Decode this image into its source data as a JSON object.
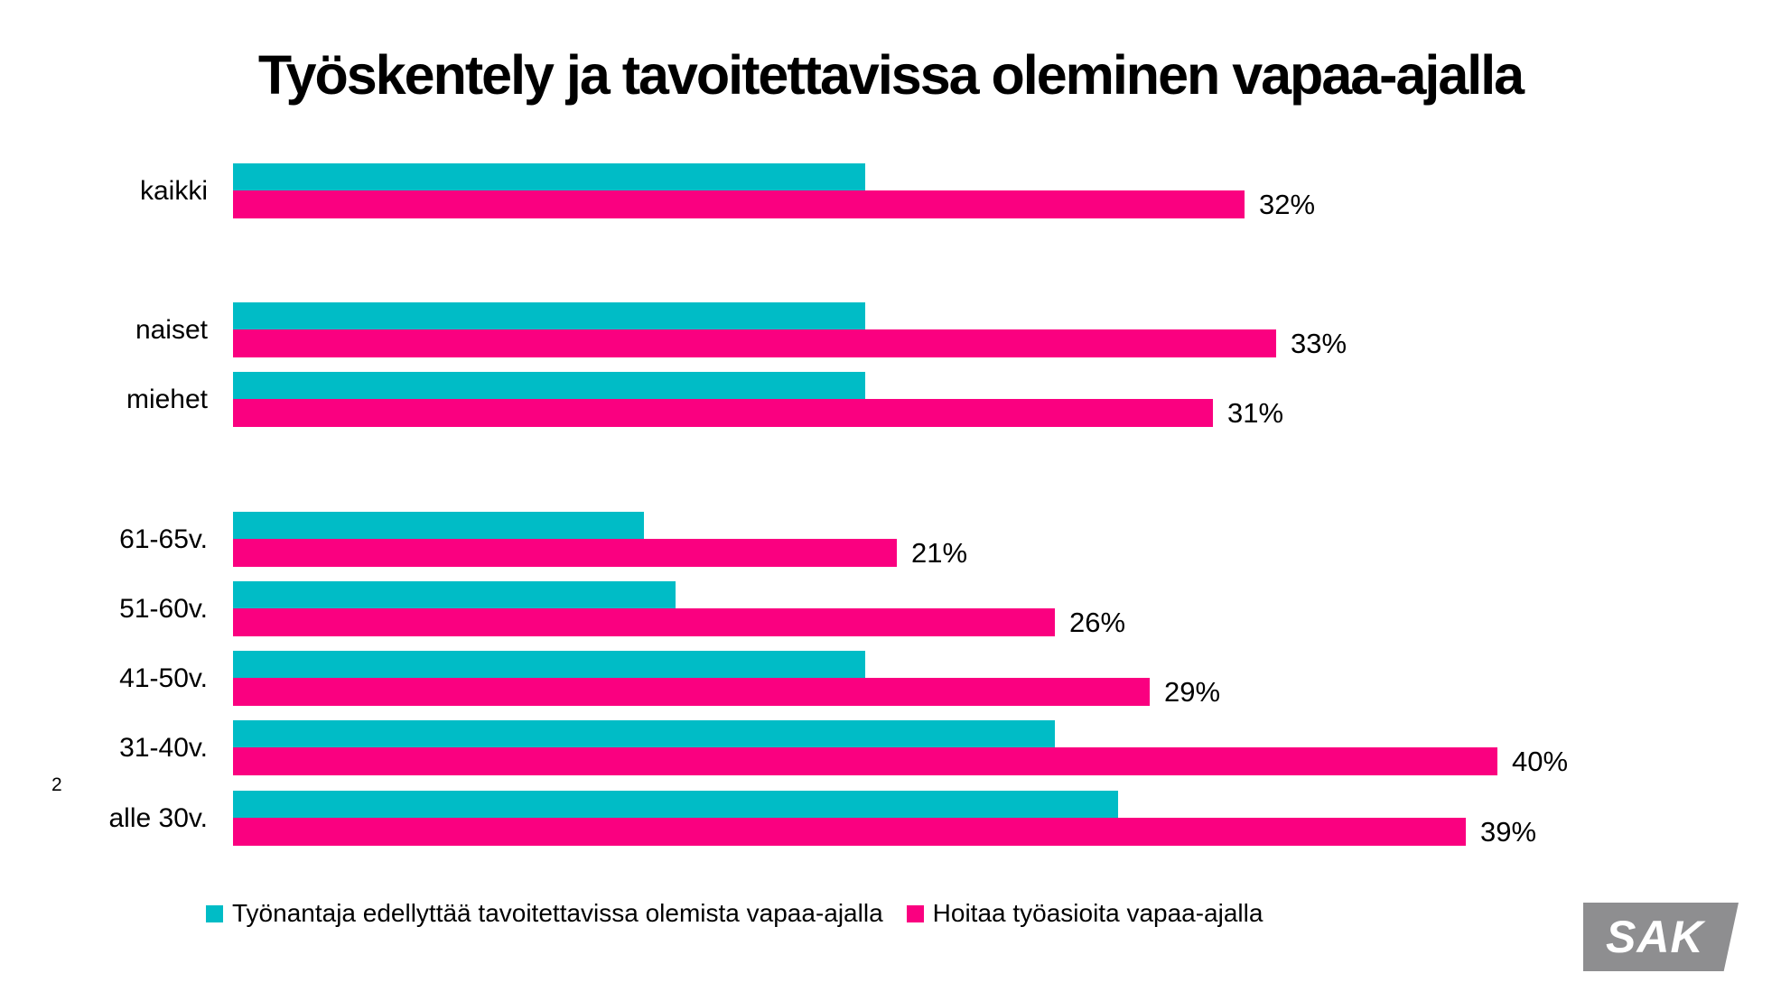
{
  "page": {
    "number": "2"
  },
  "title": "Työskentely ja tavoitettavissa oleminen vapaa-ajalla",
  "logo": {
    "text": "SAK",
    "background_color": "#8E8E90",
    "text_color": "#ffffff"
  },
  "legend": {
    "items": [
      {
        "label": "Työnantaja edellyttää tavoitettavissa olemista vapaa-ajalla",
        "color": "#00BCC6"
      },
      {
        "label": "Hoitaa työasioita vapaa-ajalla",
        "color": "#FA0080"
      }
    ]
  },
  "chart_data": {
    "type": "bar",
    "orientation": "horizontal",
    "title": "Työskentely ja tavoitettavissa oleminen vapaa-ajalla",
    "categories": [
      "kaikki",
      "naiset",
      "miehet",
      "61-65v.",
      "51-60v.",
      "41-50v.",
      "31-40v.",
      "alle 30v."
    ],
    "category_groups": [
      [
        "kaikki"
      ],
      [
        "naiset",
        "miehet"
      ],
      [
        "61-65v.",
        "51-60v.",
        "41-50v.",
        "31-40v.",
        "alle 30v."
      ]
    ],
    "series": [
      {
        "name": "Työnantaja edellyttää tavoitettavissa olemista vapaa-ajalla",
        "color": "#00BCC6",
        "values": [
          20,
          20,
          20,
          13,
          14,
          20,
          26,
          28
        ],
        "labels_shown": false
      },
      {
        "name": "Hoitaa työasioita vapaa-ajalla",
        "color": "#FA0080",
        "values": [
          32,
          33,
          31,
          21,
          26,
          29,
          40,
          39
        ],
        "labels": [
          "32%",
          "33%",
          "31%",
          "21%",
          "26%",
          "29%",
          "40%",
          "39%"
        ],
        "labels_shown": true
      }
    ],
    "xlim": [
      0,
      45
    ],
    "grid": false,
    "axis_ticks_shown": false,
    "legend_position": "bottom"
  }
}
